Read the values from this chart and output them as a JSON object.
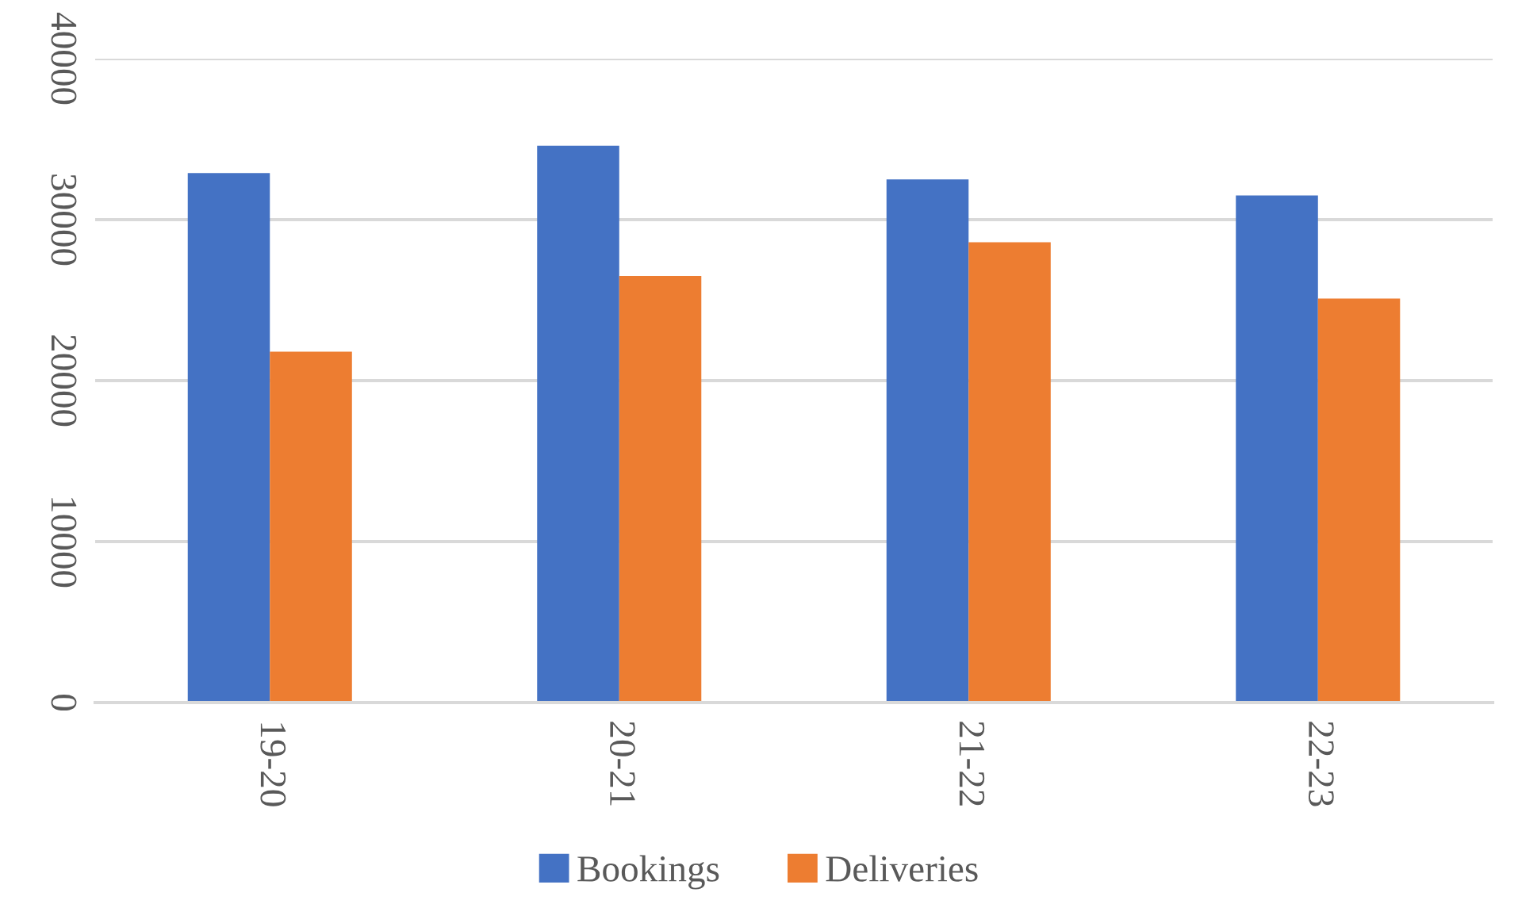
{
  "chart_data": {
    "type": "bar",
    "categories": [
      "19-20",
      "20-21",
      "21-22",
      "22-23"
    ],
    "series": [
      {
        "name": "Bookings",
        "color": "#4472c4",
        "values": [
          32900,
          34600,
          32500,
          31500
        ]
      },
      {
        "name": "Deliveries",
        "color": "#ed7d31",
        "values": [
          21800,
          26500,
          28600,
          25100
        ]
      }
    ],
    "ylim": [
      0,
      40000
    ],
    "yticks": [
      0,
      10000,
      20000,
      30000,
      40000
    ],
    "grid": "y",
    "legend": "bottom"
  }
}
